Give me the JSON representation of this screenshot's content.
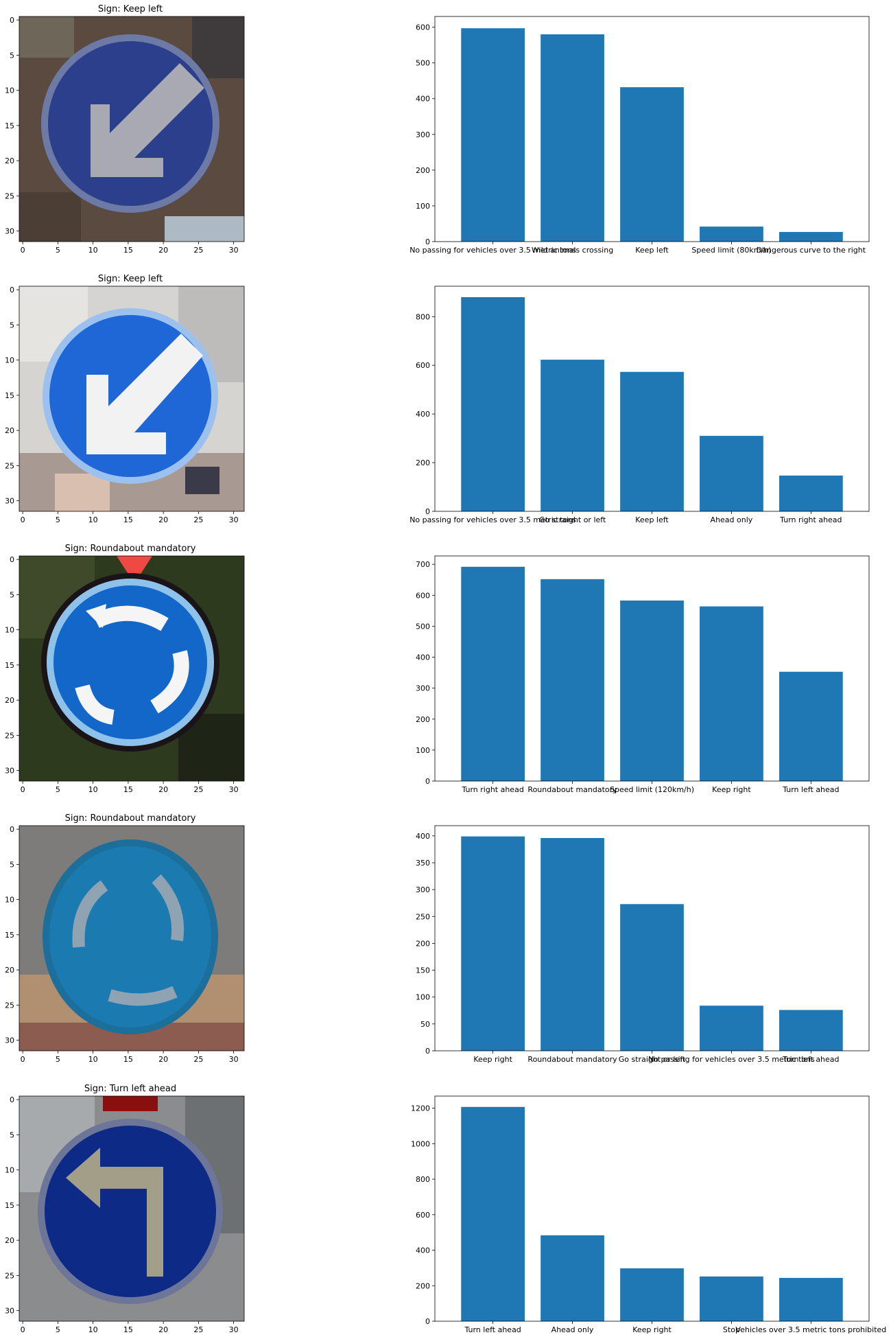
{
  "colors": {
    "bar": "#1f77b4",
    "axis": "#000000",
    "background": "#ffffff"
  },
  "panels": [
    {
      "title": "Sign: Keep left",
      "image_description_icon": "keep-left-sign-image",
      "image_x_ticks": [
        "0",
        "5",
        "10",
        "15",
        "20",
        "25",
        "30"
      ],
      "image_y_ticks": [
        "0",
        "5",
        "10",
        "15",
        "20",
        "25",
        "30"
      ]
    },
    {
      "title": "Sign: Keep left",
      "image_description_icon": "keep-left-sign-image",
      "image_x_ticks": [
        "0",
        "5",
        "10",
        "15",
        "20",
        "25",
        "30"
      ],
      "image_y_ticks": [
        "0",
        "5",
        "10",
        "15",
        "20",
        "25",
        "30"
      ]
    },
    {
      "title": "Sign: Roundabout mandatory",
      "image_description_icon": "roundabout-sign-image",
      "image_x_ticks": [
        "0",
        "5",
        "10",
        "15",
        "20",
        "25",
        "30"
      ],
      "image_y_ticks": [
        "0",
        "5",
        "10",
        "15",
        "20",
        "25",
        "30"
      ]
    },
    {
      "title": "Sign: Roundabout mandatory",
      "image_description_icon": "roundabout-sign-image",
      "image_x_ticks": [
        "0",
        "5",
        "10",
        "15",
        "20",
        "25",
        "30"
      ],
      "image_y_ticks": [
        "0",
        "5",
        "10",
        "15",
        "20",
        "25",
        "30"
      ]
    },
    {
      "title": "Sign: Turn left ahead",
      "image_description_icon": "turn-left-sign-image",
      "image_x_ticks": [
        "0",
        "5",
        "10",
        "15",
        "20",
        "25",
        "30"
      ],
      "image_y_ticks": [
        "0",
        "5",
        "10",
        "15",
        "20",
        "25",
        "30"
      ]
    }
  ],
  "chart_data": [
    {
      "type": "bar",
      "categories": [
        "No passing for vehicles over 3.5 metric tons",
        "Wild animals crossing",
        "Keep left",
        "Speed limit (80km/h)",
        "Dangerous curve to the right"
      ],
      "values": [
        597,
        580,
        432,
        42,
        27
      ],
      "ylim": [
        0,
        630
      ],
      "yticks": [
        0,
        100,
        200,
        300,
        400,
        500,
        600
      ]
    },
    {
      "type": "bar",
      "categories": [
        "No passing for vehicles over 3.5 metric tons",
        "Go straight or left",
        "Keep left",
        "Ahead only",
        "Turn right ahead"
      ],
      "values": [
        880,
        623,
        573,
        310,
        147
      ],
      "ylim": [
        0,
        925
      ],
      "yticks": [
        0,
        200,
        400,
        600,
        800
      ]
    },
    {
      "type": "bar",
      "categories": [
        "Turn right ahead",
        "Roundabout mandatory",
        "Speed limit (120km/h)",
        "Keep right",
        "Turn left ahead"
      ],
      "values": [
        692,
        652,
        583,
        564,
        353
      ],
      "ylim": [
        0,
        727
      ],
      "yticks": [
        0,
        100,
        200,
        300,
        400,
        500,
        600,
        700
      ]
    },
    {
      "type": "bar",
      "categories": [
        "Keep right",
        "Roundabout mandatory",
        "Go straight or left",
        "No passing for vehicles over 3.5 metric tons",
        "Turn left ahead"
      ],
      "values": [
        399,
        396,
        273,
        84,
        76
      ],
      "ylim": [
        0,
        419
      ],
      "yticks": [
        0,
        50,
        100,
        150,
        200,
        250,
        300,
        350,
        400
      ]
    },
    {
      "type": "bar",
      "categories": [
        "Turn left ahead",
        "Ahead only",
        "Keep right",
        "Stop",
        "Vehicles over 3.5 metric tons prohibited"
      ],
      "values": [
        1207,
        484,
        298,
        252,
        244
      ],
      "ylim": [
        0,
        1268
      ],
      "yticks": [
        0,
        200,
        400,
        600,
        800,
        1000,
        1200
      ]
    }
  ]
}
